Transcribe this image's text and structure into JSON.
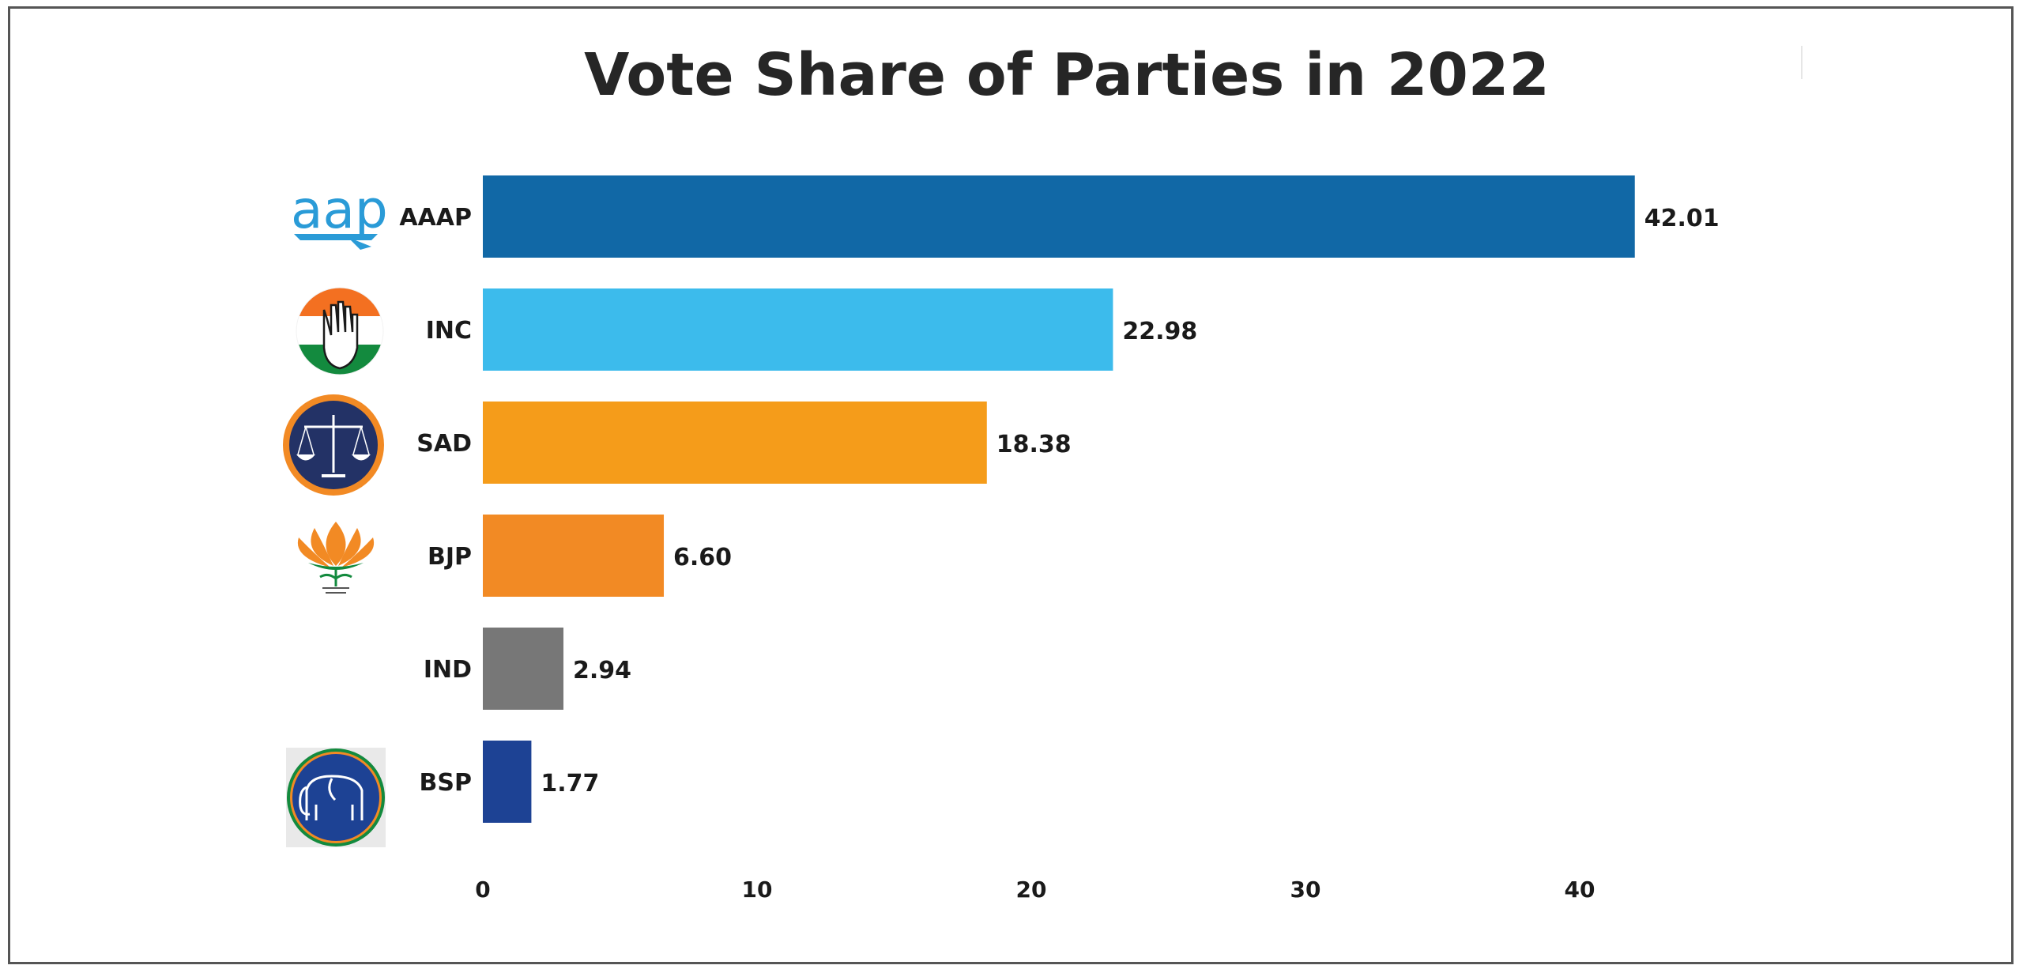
{
  "chart_data": {
    "type": "bar",
    "orientation": "horizontal",
    "title": "Vote Share of Parties in 2022",
    "xlabel": "",
    "ylabel": "",
    "categories": [
      "AAAP",
      "INC",
      "SAD",
      "BJP",
      "IND",
      "BSP"
    ],
    "values": [
      42.01,
      22.98,
      18.38,
      6.6,
      2.94,
      1.77
    ],
    "value_labels": [
      "42.01",
      "22.98",
      "18.38",
      "6.60",
      "2.94",
      "1.77"
    ],
    "colors": [
      "#1168a6",
      "#3cbbec",
      "#f59c1a",
      "#f28a24",
      "#777777",
      "#1d4294"
    ],
    "xticks": [
      "0",
      "10",
      "20",
      "30",
      "40"
    ],
    "xlim": [
      0,
      46
    ],
    "grid": false,
    "legend": "none",
    "logos": [
      "aap-logo",
      "inc-logo",
      "sad-logo",
      "bjp-logo",
      "",
      "bsp-logo"
    ]
  }
}
